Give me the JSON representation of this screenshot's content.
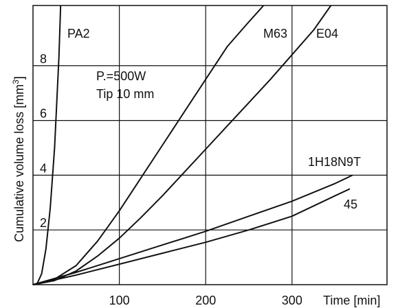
{
  "chart_data": {
    "type": "line",
    "title": "",
    "xlabel": "Time  [min]",
    "ylabel": "Cumulative volume loss [mm",
    "ylabel_superscript": "3",
    "ylabel_close": "]",
    "xlim": [
      0,
      410
    ],
    "ylim": [
      0,
      10.2
    ],
    "x_ticks": [
      100,
      200,
      300
    ],
    "y_ticks": [
      2,
      4,
      6,
      8
    ],
    "grid": true,
    "annotations": [
      "P.=500W",
      "Tip 10 mm"
    ],
    "series": [
      {
        "name": "PA2",
        "x": [
          0,
          5,
          10,
          15,
          20,
          25,
          30,
          32
        ],
        "y": [
          0,
          0.05,
          0.4,
          1.3,
          2.8,
          5.0,
          8.3,
          10.2
        ]
      },
      {
        "name": "M63",
        "x": [
          0,
          25,
          50,
          75,
          100,
          125,
          150,
          175,
          200,
          225,
          250,
          267
        ],
        "y": [
          0,
          0.2,
          0.7,
          1.6,
          2.7,
          3.9,
          5.1,
          6.3,
          7.5,
          8.7,
          9.6,
          10.2
        ]
      },
      {
        "name": "E04",
        "x": [
          0,
          25,
          50,
          75,
          100,
          125,
          150,
          175,
          200,
          225,
          250,
          275,
          300,
          325,
          345
        ],
        "y": [
          0,
          0.15,
          0.5,
          1.05,
          1.7,
          2.45,
          3.25,
          4.1,
          4.95,
          5.8,
          6.65,
          7.5,
          8.4,
          9.3,
          10.2
        ]
      },
      {
        "name": "1H18N9T",
        "x": [
          0,
          50,
          100,
          150,
          200,
          250,
          300,
          350,
          370
        ],
        "y": [
          0,
          0.45,
          0.95,
          1.45,
          1.95,
          2.5,
          3.05,
          3.7,
          4.0
        ]
      },
      {
        "name": "45",
        "x": [
          0,
          50,
          100,
          150,
          200,
          250,
          300,
          350,
          367
        ],
        "y": [
          0,
          0.35,
          0.75,
          1.15,
          1.55,
          2.0,
          2.5,
          3.25,
          3.5
        ]
      }
    ]
  }
}
